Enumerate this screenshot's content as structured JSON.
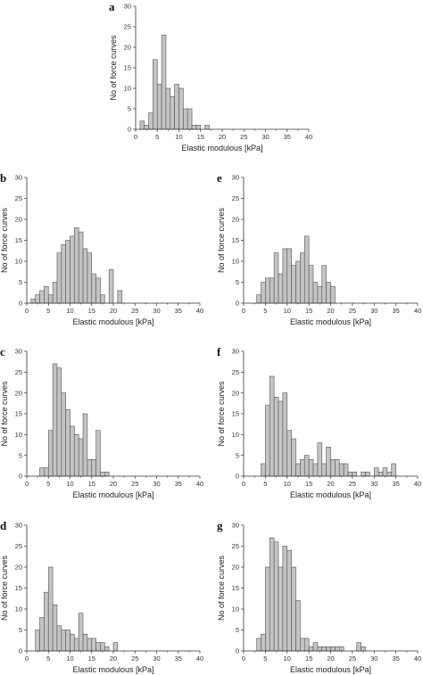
{
  "chart_data": [
    {
      "panel_label": "a",
      "type": "bar",
      "xlabel": "Elastic modulous [kPa]",
      "ylabel": "No of force curves",
      "xlim": [
        0,
        40
      ],
      "ylim": [
        0,
        30
      ],
      "xticks": [
        "0",
        "5",
        "10",
        "15",
        "20",
        "25",
        "30",
        "35",
        "40"
      ],
      "yticks": [
        "0",
        "5",
        "10",
        "15",
        "20",
        "25",
        "30"
      ],
      "bin_width": 1,
      "x": [
        1,
        2,
        3,
        4,
        5,
        6,
        7,
        8,
        9,
        10,
        11,
        12,
        13,
        14,
        16
      ],
      "values": [
        2,
        1,
        4,
        17,
        11,
        23,
        10,
        8,
        11,
        10,
        5,
        5,
        1,
        1,
        1
      ]
    },
    {
      "panel_label": "b",
      "type": "bar",
      "xlabel": "Elastic modulous [kPa]",
      "ylabel": "No of force curves",
      "xlim": [
        0,
        40
      ],
      "ylim": [
        0,
        30
      ],
      "xticks": [
        "0",
        "5",
        "10",
        "15",
        "20",
        "25",
        "30",
        "35",
        "40"
      ],
      "yticks": [
        "0",
        "5",
        "10",
        "15",
        "20",
        "25",
        "30"
      ],
      "bin_width": 1,
      "x": [
        1,
        2,
        3,
        4,
        5,
        6,
        7,
        8,
        9,
        10,
        11,
        12,
        13,
        14,
        15,
        16,
        17,
        19,
        21
      ],
      "values": [
        1,
        2,
        3,
        4,
        2,
        5,
        12,
        14,
        15,
        16,
        18,
        17,
        13,
        12,
        7,
        6,
        2,
        8,
        3
      ]
    },
    {
      "panel_label": "e",
      "type": "bar",
      "xlabel": "Elastic modulous [kPa]",
      "ylabel": "No of force curves",
      "xlim": [
        0,
        40
      ],
      "ylim": [
        0,
        30
      ],
      "xticks": [
        "0",
        "5",
        "10",
        "15",
        "20",
        "25",
        "30",
        "35",
        "40"
      ],
      "yticks": [
        "0",
        "5",
        "10",
        "15",
        "20",
        "25",
        "30"
      ],
      "bin_width": 1,
      "x": [
        3,
        4,
        5,
        6,
        7,
        8,
        9,
        10,
        11,
        12,
        13,
        14,
        15,
        16,
        17,
        18,
        19,
        20
      ],
      "values": [
        2,
        5,
        6,
        6,
        12,
        7,
        13,
        13,
        9,
        10,
        12,
        16,
        9,
        5,
        4,
        9,
        5,
        4
      ]
    },
    {
      "panel_label": "c",
      "type": "bar",
      "xlabel": "Elastic modulous [kPa]",
      "ylabel": "No of force curves",
      "xlim": [
        0,
        40
      ],
      "ylim": [
        0,
        30
      ],
      "xticks": [
        "0",
        "5",
        "10",
        "15",
        "20",
        "25",
        "30",
        "35",
        "40"
      ],
      "yticks": [
        "0",
        "5",
        "10",
        "15",
        "20",
        "25",
        "30"
      ],
      "bin_width": 1,
      "x": [
        3,
        4,
        5,
        6,
        7,
        8,
        9,
        10,
        11,
        12,
        13,
        14,
        15,
        16,
        17,
        18
      ],
      "values": [
        2,
        2,
        11,
        27,
        26,
        20,
        16,
        12,
        10,
        9,
        15,
        4,
        4,
        11,
        1,
        1
      ]
    },
    {
      "panel_label": "f",
      "type": "bar",
      "xlabel": "Elastic modulous [kPa]",
      "ylabel": "No of force curves",
      "xlim": [
        0,
        40
      ],
      "ylim": [
        0,
        30
      ],
      "xticks": [
        "0",
        "5",
        "10",
        "15",
        "20",
        "25",
        "30",
        "35",
        "40"
      ],
      "yticks": [
        "0",
        "5",
        "10",
        "15",
        "20",
        "25",
        "30"
      ],
      "bin_width": 1,
      "x": [
        4,
        5,
        6,
        7,
        8,
        9,
        10,
        11,
        12,
        13,
        14,
        15,
        16,
        17,
        18,
        19,
        20,
        21,
        22,
        23,
        24,
        25,
        27,
        28,
        30,
        31,
        32,
        33,
        34
      ],
      "values": [
        3,
        17,
        24,
        19,
        18,
        20,
        11,
        9,
        3,
        4,
        5,
        4,
        3,
        8,
        3,
        7,
        4,
        4,
        3,
        3,
        1,
        1,
        1,
        1,
        2,
        1,
        2,
        1,
        3
      ]
    },
    {
      "panel_label": "d",
      "type": "bar",
      "xlabel": "Elastic modulous [kPa]",
      "ylabel": "No of force curves",
      "xlim": [
        0,
        40
      ],
      "ylim": [
        0,
        30
      ],
      "xticks": [
        "0",
        "5",
        "10",
        "15",
        "20",
        "25",
        "30",
        "35",
        "40"
      ],
      "yticks": [
        "0",
        "5",
        "10",
        "15",
        "20",
        "25",
        "30"
      ],
      "bin_width": 1,
      "x": [
        2,
        3,
        4,
        5,
        6,
        7,
        8,
        9,
        10,
        11,
        12,
        13,
        14,
        15,
        16,
        17,
        18,
        20
      ],
      "values": [
        5,
        8,
        14,
        20,
        11,
        6,
        5,
        5,
        4,
        3,
        9,
        4,
        3,
        3,
        2,
        2,
        1,
        2
      ]
    },
    {
      "panel_label": "g",
      "type": "bar",
      "xlabel": "Elastic modulous [kPa]",
      "ylabel": "No of force curves",
      "xlim": [
        0,
        40
      ],
      "ylim": [
        0,
        30
      ],
      "xticks": [
        "0",
        "5",
        "10",
        "15",
        "20",
        "25",
        "30",
        "35",
        "40"
      ],
      "yticks": [
        "0",
        "5",
        "10",
        "15",
        "20",
        "25",
        "30"
      ],
      "bin_width": 1,
      "x": [
        3,
        4,
        5,
        6,
        7,
        8,
        9,
        10,
        11,
        12,
        13,
        14,
        15,
        16,
        17,
        18,
        19,
        20,
        21,
        22,
        26,
        27
      ],
      "values": [
        3,
        4,
        20,
        27,
        26,
        20,
        25,
        24,
        20,
        12,
        3,
        3,
        1,
        2,
        1,
        1,
        1,
        1,
        1,
        1,
        2,
        1
      ]
    }
  ]
}
